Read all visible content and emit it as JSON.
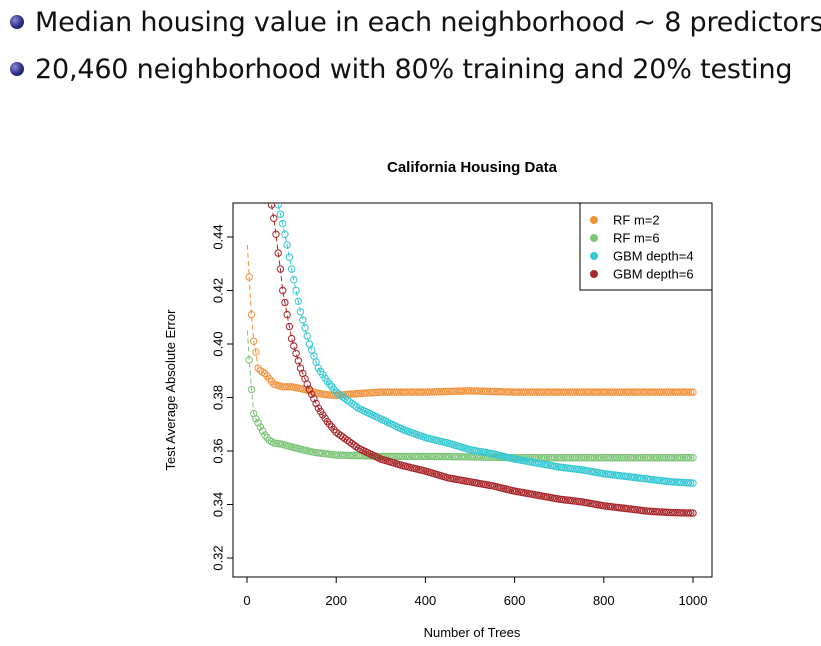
{
  "slide": {
    "bullets": [
      "Median housing value in each neighborhood ∼ 8 predictors",
      "20,460 neighborhood with 80% training and 20% testing"
    ]
  },
  "chart_data": {
    "type": "scatter",
    "title": "California Housing Data",
    "xlabel": "Number of Trees",
    "ylabel": "Test Average Absolute Error",
    "xlim": [
      0,
      1000
    ],
    "ylim": [
      0.32,
      0.45
    ],
    "x_ticks": [
      0,
      200,
      400,
      600,
      800,
      1000
    ],
    "y_ticks": [
      0.32,
      0.34,
      0.36,
      0.38,
      0.4,
      0.42,
      0.44
    ],
    "legend_position": "top-right",
    "grid": false,
    "series": [
      {
        "name": "RF m=2",
        "color": "#f0923c",
        "points": [
          [
            1,
            0.437
          ],
          [
            5,
            0.425
          ],
          [
            10,
            0.411
          ],
          [
            15,
            0.401
          ],
          [
            20,
            0.397
          ],
          [
            25,
            0.391
          ],
          [
            30,
            0.39
          ],
          [
            40,
            0.389
          ],
          [
            50,
            0.387
          ],
          [
            60,
            0.385
          ],
          [
            80,
            0.384
          ],
          [
            100,
            0.384
          ],
          [
            130,
            0.383
          ],
          [
            160,
            0.3815
          ],
          [
            180,
            0.381
          ],
          [
            200,
            0.3808
          ],
          [
            250,
            0.3815
          ],
          [
            300,
            0.382
          ],
          [
            400,
            0.382
          ],
          [
            500,
            0.3825
          ],
          [
            600,
            0.382
          ],
          [
            700,
            0.382
          ],
          [
            800,
            0.382
          ],
          [
            900,
            0.382
          ],
          [
            1000,
            0.382
          ]
        ]
      },
      {
        "name": "RF m=6",
        "color": "#7cc576",
        "points": [
          [
            1,
            0.405
          ],
          [
            5,
            0.394
          ],
          [
            10,
            0.383
          ],
          [
            15,
            0.374
          ],
          [
            20,
            0.372
          ],
          [
            30,
            0.369
          ],
          [
            40,
            0.366
          ],
          [
            50,
            0.364
          ],
          [
            60,
            0.363
          ],
          [
            80,
            0.3625
          ],
          [
            100,
            0.3615
          ],
          [
            150,
            0.3595
          ],
          [
            200,
            0.3585
          ],
          [
            300,
            0.358
          ],
          [
            400,
            0.358
          ],
          [
            500,
            0.3578
          ],
          [
            600,
            0.3575
          ],
          [
            700,
            0.3575
          ],
          [
            800,
            0.3575
          ],
          [
            900,
            0.3575
          ],
          [
            1000,
            0.3575
          ]
        ]
      },
      {
        "name": "GBM depth=4",
        "color": "#35c8d2",
        "points": [
          [
            70,
            0.452
          ],
          [
            80,
            0.445
          ],
          [
            90,
            0.437
          ],
          [
            100,
            0.428
          ],
          [
            120,
            0.412
          ],
          [
            140,
            0.4
          ],
          [
            160,
            0.391
          ],
          [
            180,
            0.386
          ],
          [
            200,
            0.382
          ],
          [
            250,
            0.376
          ],
          [
            300,
            0.372
          ],
          [
            350,
            0.368
          ],
          [
            400,
            0.365
          ],
          [
            450,
            0.363
          ],
          [
            500,
            0.3605
          ],
          [
            550,
            0.359
          ],
          [
            600,
            0.357
          ],
          [
            650,
            0.3555
          ],
          [
            700,
            0.354
          ],
          [
            750,
            0.353
          ],
          [
            800,
            0.3515
          ],
          [
            850,
            0.3505
          ],
          [
            900,
            0.3495
          ],
          [
            950,
            0.3485
          ],
          [
            1000,
            0.348
          ]
        ]
      },
      {
        "name": "GBM depth=6",
        "color": "#a8262a",
        "points": [
          [
            55,
            0.452
          ],
          [
            60,
            0.447
          ],
          [
            65,
            0.441
          ],
          [
            70,
            0.434
          ],
          [
            75,
            0.428
          ],
          [
            80,
            0.42
          ],
          [
            90,
            0.411
          ],
          [
            100,
            0.402
          ],
          [
            120,
            0.391
          ],
          [
            140,
            0.383
          ],
          [
            160,
            0.376
          ],
          [
            180,
            0.371
          ],
          [
            200,
            0.367
          ],
          [
            250,
            0.361
          ],
          [
            300,
            0.357
          ],
          [
            350,
            0.3545
          ],
          [
            400,
            0.3525
          ],
          [
            450,
            0.35
          ],
          [
            500,
            0.3485
          ],
          [
            550,
            0.347
          ],
          [
            600,
            0.345
          ],
          [
            650,
            0.3435
          ],
          [
            700,
            0.342
          ],
          [
            750,
            0.341
          ],
          [
            800,
            0.3395
          ],
          [
            850,
            0.3385
          ],
          [
            900,
            0.3375
          ],
          [
            950,
            0.337
          ],
          [
            1000,
            0.3368
          ]
        ]
      }
    ]
  }
}
